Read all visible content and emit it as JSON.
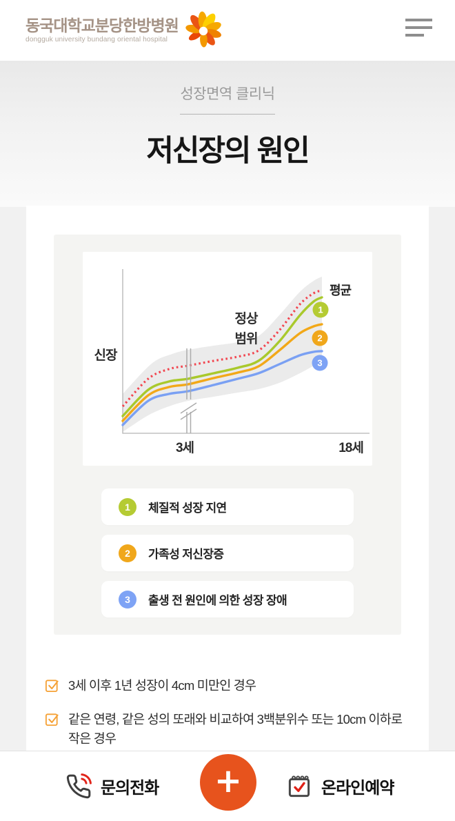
{
  "header": {
    "logo_title": "동국대학교분당한방병원",
    "logo_subtitle": "dongguk university bundang oriental hospital"
  },
  "hero": {
    "eyebrow": "성장면역 클리닉",
    "title": "저신장의 원인"
  },
  "chart_data": {
    "type": "line",
    "description": "소아 연령에 따른 신장 성장 곡선 (개념도)",
    "ylabel": "신장",
    "x_ticks": [
      "3세",
      "18세"
    ],
    "labels": {
      "average": "평균",
      "normal_range_line1": "정상",
      "normal_range_line2": "범위"
    },
    "coords": "svg 420x310, x축 57-415, y축 25-263",
    "band": {
      "name": "정상 범위",
      "color": "#ebebeb",
      "upper": [
        [
          58,
          206
        ],
        [
          100,
          162
        ],
        [
          130,
          148
        ],
        [
          153,
          142
        ],
        [
          190,
          136
        ],
        [
          225,
          131
        ],
        [
          255,
          122
        ],
        [
          285,
          92
        ],
        [
          315,
          58
        ],
        [
          335,
          42
        ],
        [
          347,
          36
        ]
      ],
      "lower": [
        [
          58,
          261
        ],
        [
          95,
          237
        ],
        [
          125,
          224
        ],
        [
          153,
          216
        ],
        [
          190,
          210
        ],
        [
          225,
          204
        ],
        [
          255,
          199
        ],
        [
          285,
          190
        ],
        [
          315,
          176
        ],
        [
          335,
          165
        ],
        [
          347,
          158
        ]
      ]
    },
    "series": [
      {
        "name": "평균",
        "style": "dotted",
        "color": "#f2454f",
        "points": [
          [
            58,
            224
          ],
          [
            95,
            184
          ],
          [
            125,
            170
          ],
          [
            153,
            165
          ],
          [
            190,
            158
          ],
          [
            225,
            152
          ],
          [
            255,
            143
          ],
          [
            285,
            114
          ],
          [
            315,
            76
          ],
          [
            335,
            60
          ],
          [
            347,
            56
          ]
        ]
      },
      {
        "name": "1 체질적 성장 지연",
        "style": "solid",
        "color": "#a9c92c",
        "points": [
          [
            58,
            238
          ],
          [
            95,
            200
          ],
          [
            125,
            188
          ],
          [
            153,
            184
          ],
          [
            190,
            176
          ],
          [
            225,
            168
          ],
          [
            255,
            158
          ],
          [
            285,
            130
          ],
          [
            315,
            92
          ],
          [
            335,
            72
          ],
          [
            347,
            66
          ]
        ]
      },
      {
        "name": "2 가족성 저신장증",
        "style": "solid",
        "color": "#f2a818",
        "points": [
          [
            58,
            245
          ],
          [
            95,
            208
          ],
          [
            125,
            196
          ],
          [
            153,
            192
          ],
          [
            190,
            183
          ],
          [
            225,
            175
          ],
          [
            255,
            166
          ],
          [
            285,
            143
          ],
          [
            315,
            118
          ],
          [
            335,
            108
          ],
          [
            347,
            105
          ]
        ]
      },
      {
        "name": "3 출생 전 원인에 의한 성장 장애",
        "style": "solid",
        "color": "#7aa0f3",
        "points": [
          [
            58,
            251
          ],
          [
            95,
            216
          ],
          [
            125,
            206
          ],
          [
            153,
            202
          ],
          [
            190,
            193
          ],
          [
            225,
            184
          ],
          [
            255,
            176
          ],
          [
            285,
            163
          ],
          [
            315,
            150
          ],
          [
            335,
            145
          ],
          [
            347,
            144
          ]
        ]
      }
    ],
    "markers": [
      {
        "num": "1",
        "color": "#b5cb33",
        "x": 345,
        "y": 84
      },
      {
        "num": "2",
        "color": "#f0a71b",
        "x": 344,
        "y": 125
      },
      {
        "num": "3",
        "color": "#7ea3f5",
        "x": 344,
        "y": 161
      }
    ],
    "axis_break_x": 153
  },
  "causes": [
    {
      "num": "1",
      "color": "#b5cb33",
      "label": "체질적 성장 지연"
    },
    {
      "num": "2",
      "color": "#f0a71b",
      "label": "가족성 저신장증"
    },
    {
      "num": "3",
      "color": "#7ea3f5",
      "label": "출생 전 원인에 의한 성장 장애"
    }
  ],
  "checklist": [
    "3세 이후 1년 성장이 4cm 미만인 경우",
    "같은 연령, 같은 성의 또래와 비교하여 3백분위수 또는 10cm 이하로 작은 경우"
  ],
  "bottom_nav": {
    "phone_label": "문의전화",
    "reserve_label": "온라인예약",
    "fab_label": "+"
  },
  "colors": {
    "fab": "#e7531d",
    "checkbox": "#f5a135",
    "logo_text": "#a59386",
    "band": "#ebebeb",
    "panel": "#f4f4f2"
  }
}
